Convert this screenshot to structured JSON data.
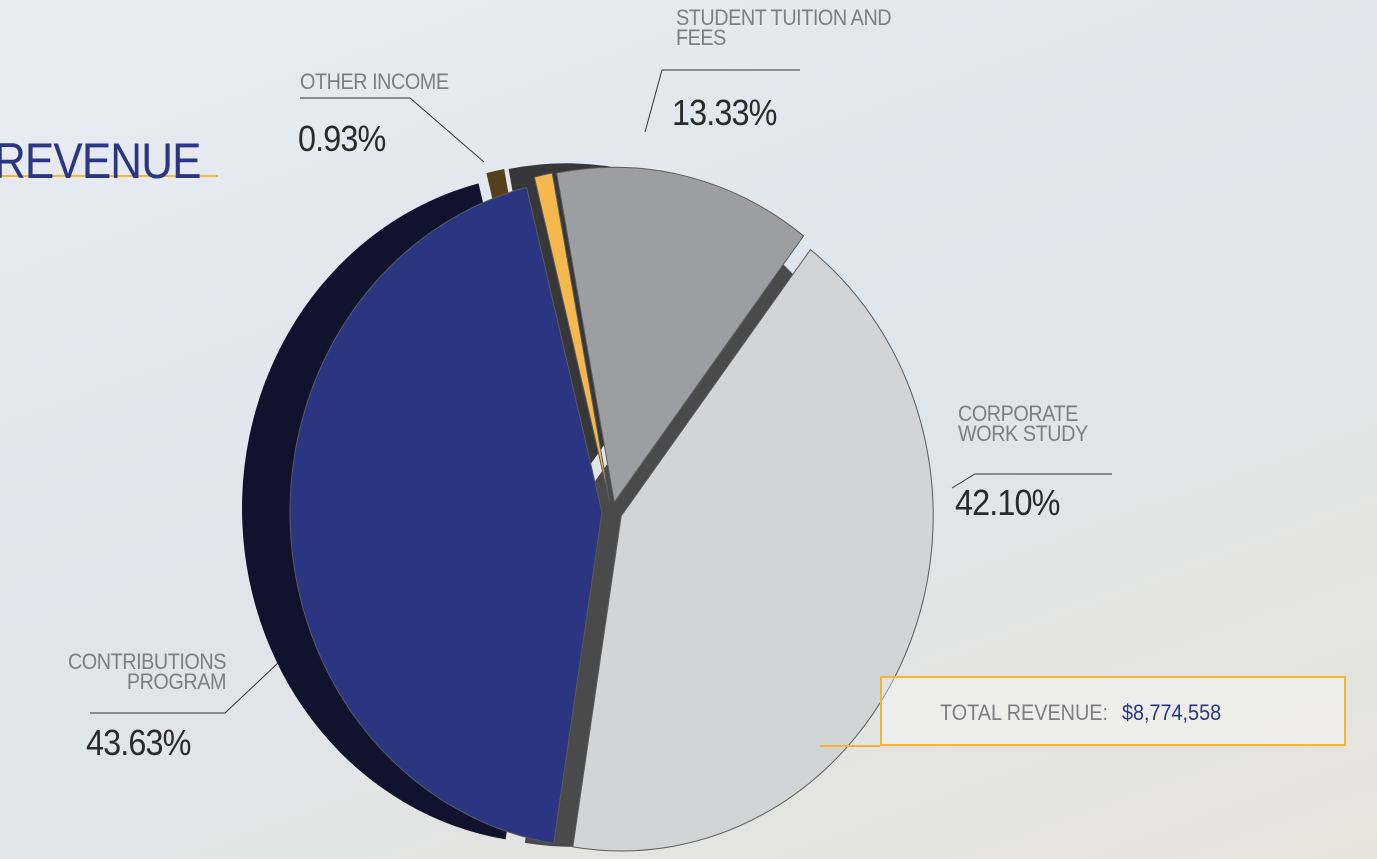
{
  "chart_data": {
    "type": "pie",
    "title": "REVENUE",
    "categories": [
      "OTHER INCOME",
      "STUDENT TUITION AND FEES",
      "CORPORATE WORK STUDY",
      "CONTRIBUTIONS PROGRAM"
    ],
    "values": [
      0.93,
      13.33,
      42.1,
      43.63
    ],
    "value_labels": [
      "0.93%",
      "13.33%",
      "42.10%",
      "43.63%"
    ],
    "colors": [
      "#f5b84c",
      "#9d9ea2",
      "#d3d4d6",
      "#2b3582"
    ],
    "total_label": "TOTAL REVENUE:",
    "total": "$8,774,558"
  }
}
